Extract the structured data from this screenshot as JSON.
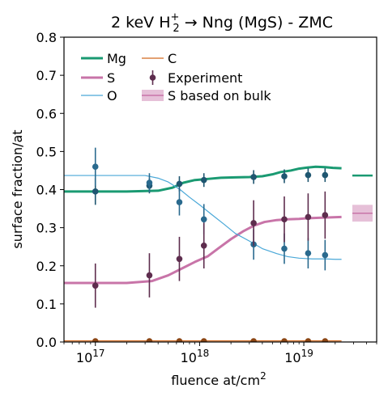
{
  "chart_data": {
    "type": "line",
    "title": {
      "prefix": "2 keV H",
      "sup": "+",
      "sub": "2",
      "suffix": " → Nng (MgS) - ZMC"
    },
    "xlabel": {
      "text": "fluence at/cm",
      "sup": "2"
    },
    "ylabel": "surface fraction/at",
    "x_scale": "log",
    "xlim": [
      5e+16,
      5e+19
    ],
    "ylim": [
      0.0,
      0.8
    ],
    "y_ticks": [
      "0.0",
      "0.1",
      "0.2",
      "0.3",
      "0.4",
      "0.5",
      "0.6",
      "0.7",
      "0.8"
    ],
    "x_ticks": [
      {
        "value": 1e+17,
        "base": "10",
        "exp": "17"
      },
      {
        "value": 1e+18,
        "base": "10",
        "exp": "18"
      },
      {
        "value": 1e+19,
        "base": "10",
        "exp": "19"
      }
    ],
    "grid": false,
    "legend_position": "top-left",
    "series": [
      {
        "name": "Mg",
        "color": "#1a9a72",
        "width": 3,
        "points": [
          [
            5e+16,
            0.395
          ],
          [
            2e+17,
            0.395
          ],
          [
            4e+17,
            0.397
          ],
          [
            5.5e+17,
            0.405
          ],
          [
            7e+17,
            0.418
          ],
          [
            9e+17,
            0.425
          ],
          [
            1.2e+18,
            0.428
          ],
          [
            1.6e+18,
            0.431
          ],
          [
            2.2e+18,
            0.432
          ],
          [
            3e+18,
            0.433
          ],
          [
            4e+18,
            0.435
          ],
          [
            5e+18,
            0.44
          ],
          [
            6e+18,
            0.446
          ],
          [
            7.5e+18,
            0.45
          ],
          [
            9e+18,
            0.455
          ],
          [
            1.1e+19,
            0.458
          ],
          [
            1.3e+19,
            0.46
          ],
          [
            1.6e+19,
            0.459
          ],
          [
            1.9e+19,
            0.457
          ],
          [
            2.3e+19,
            0.456
          ]
        ]
      },
      {
        "name": "S",
        "color": "#c874a8",
        "width": 3,
        "points": [
          [
            5e+16,
            0.155
          ],
          [
            2e+17,
            0.155
          ],
          [
            3.5e+17,
            0.16
          ],
          [
            5e+17,
            0.175
          ],
          [
            7e+17,
            0.195
          ],
          [
            9e+17,
            0.21
          ],
          [
            1.2e+18,
            0.225
          ],
          [
            1.5e+18,
            0.245
          ],
          [
            2e+18,
            0.27
          ],
          [
            2.6e+18,
            0.29
          ],
          [
            3.3e+18,
            0.305
          ],
          [
            4.2e+18,
            0.315
          ],
          [
            5.5e+18,
            0.32
          ],
          [
            7e+18,
            0.322
          ],
          [
            9e+18,
            0.323
          ],
          [
            1.1e+19,
            0.325
          ],
          [
            1.4e+19,
            0.326
          ],
          [
            1.8e+19,
            0.327
          ],
          [
            2.3e+19,
            0.328
          ]
        ]
      },
      {
        "name": "O",
        "color": "#4aa8d8",
        "width": 1.2,
        "points": [
          [
            5e+16,
            0.437
          ],
          [
            1.5e+17,
            0.437
          ],
          [
            3e+17,
            0.437
          ],
          [
            4e+17,
            0.43
          ],
          [
            5e+17,
            0.42
          ],
          [
            6.5e+17,
            0.4
          ],
          [
            8e+17,
            0.38
          ],
          [
            1e+18,
            0.36
          ],
          [
            1.3e+18,
            0.335
          ],
          [
            1.7e+18,
            0.31
          ],
          [
            2.2e+18,
            0.285
          ],
          [
            3e+18,
            0.265
          ],
          [
            4e+18,
            0.245
          ],
          [
            5.5e+18,
            0.232
          ],
          [
            7e+18,
            0.224
          ],
          [
            9e+18,
            0.22
          ],
          [
            1.2e+19,
            0.218
          ],
          [
            1.6e+19,
            0.218
          ],
          [
            2e+19,
            0.217
          ],
          [
            2.3e+19,
            0.217
          ]
        ]
      },
      {
        "name": "C",
        "color": "#d2691e",
        "width": 1.2,
        "points": [
          [
            5e+16,
            0.003
          ],
          [
            2.3e+19,
            0.003
          ]
        ]
      }
    ],
    "bulk_reference": [
      {
        "element": "Mg",
        "value": 0.437,
        "color": "#1a9a72"
      },
      {
        "name": "S based on bulk",
        "element": "S",
        "value": 0.338,
        "band": [
          0.316,
          0.36
        ],
        "color": "#c874a8"
      }
    ],
    "experiment": {
      "name": "Experiment",
      "legend_color": "#5e2d4e",
      "groups": [
        {
          "element": "Mg",
          "color": "#1f5670",
          "points": [
            {
              "x": 1e+17,
              "y": 0.395,
              "err": 0.035
            },
            {
              "x": 3.3e+17,
              "y": 0.41,
              "err": 0.02
            },
            {
              "x": 6.4e+17,
              "y": 0.415,
              "err": 0.02
            },
            {
              "x": 1.1e+18,
              "y": 0.425,
              "err": 0.018
            },
            {
              "x": 3.3e+18,
              "y": 0.433,
              "err": 0.018
            },
            {
              "x": 6.5e+18,
              "y": 0.435,
              "err": 0.018
            },
            {
              "x": 1.1e+19,
              "y": 0.438,
              "err": 0.018
            },
            {
              "x": 1.6e+19,
              "y": 0.438,
              "err": 0.018
            }
          ]
        },
        {
          "element": "O",
          "color": "#2a6a8e",
          "points": [
            {
              "x": 1e+17,
              "y": 0.46,
              "err": 0.05
            },
            {
              "x": 3.3e+17,
              "y": 0.418,
              "err": 0.025
            },
            {
              "x": 6.4e+17,
              "y": 0.367,
              "err": 0.035
            },
            {
              "x": 1.1e+18,
              "y": 0.322,
              "err": 0.04
            },
            {
              "x": 3.3e+18,
              "y": 0.256,
              "err": 0.04
            },
            {
              "x": 6.5e+18,
              "y": 0.245,
              "err": 0.04
            },
            {
              "x": 1.1e+19,
              "y": 0.233,
              "err": 0.04
            },
            {
              "x": 1.6e+19,
              "y": 0.228,
              "err": 0.04
            }
          ]
        },
        {
          "element": "S",
          "color": "#5e2d4e",
          "points": [
            {
              "x": 1e+17,
              "y": 0.148,
              "err": 0.058
            },
            {
              "x": 3.3e+17,
              "y": 0.175,
              "err": 0.058
            },
            {
              "x": 6.4e+17,
              "y": 0.218,
              "err": 0.058
            },
            {
              "x": 1.1e+18,
              "y": 0.253,
              "err": 0.06
            },
            {
              "x": 3.3e+18,
              "y": 0.312,
              "err": 0.06
            },
            {
              "x": 6.5e+18,
              "y": 0.322,
              "err": 0.06
            },
            {
              "x": 1.1e+19,
              "y": 0.328,
              "err": 0.062
            },
            {
              "x": 1.6e+19,
              "y": 0.333,
              "err": 0.062
            }
          ]
        },
        {
          "element": "C",
          "color": "#8b4513",
          "points": [
            {
              "x": 1e+17,
              "y": 0.002,
              "err": 0.003
            },
            {
              "x": 3.3e+17,
              "y": 0.002,
              "err": 0.003
            },
            {
              "x": 6.4e+17,
              "y": 0.002,
              "err": 0.003
            },
            {
              "x": 1.1e+18,
              "y": 0.002,
              "err": 0.003
            },
            {
              "x": 3.3e+18,
              "y": 0.002,
              "err": 0.003
            },
            {
              "x": 6.5e+18,
              "y": 0.002,
              "err": 0.003
            },
            {
              "x": 1.1e+19,
              "y": 0.002,
              "err": 0.003
            },
            {
              "x": 1.6e+19,
              "y": 0.002,
              "err": 0.003
            }
          ]
        }
      ]
    },
    "legend": [
      {
        "label": "Mg",
        "kind": "line",
        "color": "#1a9a72",
        "width": 3
      },
      {
        "label": "S",
        "kind": "line",
        "color": "#c874a8",
        "width": 3
      },
      {
        "label": "O",
        "kind": "line",
        "color": "#4aa8d8",
        "width": 1.2
      },
      {
        "label": "C",
        "kind": "line",
        "color": "#d2691e",
        "width": 1.2
      },
      {
        "label": "Experiment",
        "kind": "errorbar",
        "color": "#5e2d4e"
      },
      {
        "label": "S based on bulk",
        "kind": "band",
        "color": "#c874a8"
      }
    ]
  }
}
